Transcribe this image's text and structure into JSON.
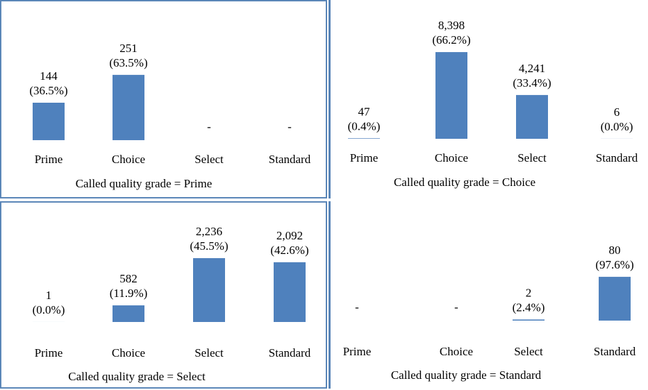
{
  "chart_data": [
    {
      "type": "bar",
      "categories": [
        "Prime",
        "Choice",
        "Select",
        "Standard"
      ],
      "values": [
        144,
        251,
        null,
        null
      ],
      "percent_labels": [
        "(36.5%)",
        "(63.5%)",
        "",
        ""
      ],
      "value_labels": [
        "144",
        "251",
        "-",
        "-"
      ],
      "xlabel": "Called quality grade = Prime",
      "ymax": 480,
      "bar_color": "#4f81bd"
    },
    {
      "type": "bar",
      "categories": [
        "Prime",
        "Choice",
        "Select",
        "Standard"
      ],
      "values": [
        47,
        8398,
        4241,
        6
      ],
      "percent_labels": [
        "(0.4%)",
        "(66.2%)",
        "(33.4%)",
        "(0.0%)"
      ],
      "value_labels": [
        "47",
        "8,398",
        "4,241",
        "6"
      ],
      "xlabel": "Called quality grade = Choice",
      "ymax": 12100,
      "bar_color": "#4f81bd"
    },
    {
      "type": "bar",
      "categories": [
        "Prime",
        "Choice",
        "Select",
        "Standard"
      ],
      "values": [
        1,
        582,
        2236,
        2092
      ],
      "percent_labels": [
        "(0.0%)",
        "(11.9%)",
        "(45.5%)",
        "(42.6%)"
      ],
      "value_labels": [
        "1",
        "582",
        "2,236",
        "2,092"
      ],
      "xlabel": "Called quality grade = Select",
      "ymax": 3450,
      "bar_color": "#4f81bd"
    },
    {
      "type": "bar",
      "categories": [
        "Prime",
        "Choice",
        "Select",
        "Standard"
      ],
      "values": [
        null,
        null,
        2,
        80
      ],
      "percent_labels": [
        "",
        "",
        "(2.4%)",
        "(97.6%)"
      ],
      "value_labels": [
        "-",
        "-",
        "2",
        "80"
      ],
      "xlabel": "Called quality grade = Standard",
      "ymax": 180,
      "bar_color": "#4f81bd"
    }
  ]
}
